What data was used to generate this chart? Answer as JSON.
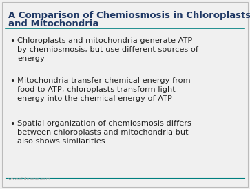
{
  "title_line1": "A Comparison of Chemiosmosis in Chloroplasts",
  "title_line2": "and Mitochondria",
  "title_color": "#1F3864",
  "title_fontsize": 9.5,
  "background_color": "#F0F0F0",
  "border_color": "#BBBBBB",
  "line_color": "#008080",
  "bullet_color": "#222222",
  "bullet_fontsize": 8.2,
  "bullets": [
    "Chloroplasts and mitochondria generate ATP\nby chemiosmosis, but use different sources of\nenergy",
    "Mitochondria transfer chemical energy from\nfood to ATP; chloroplasts transform light\nenergy into the chemical energy of ATP",
    "Spatial organization of chemiosmosis differs\nbetween chloroplasts and mitochondria but\nalso shows similarities"
  ],
  "watermark": "www.slidebase.com",
  "watermark_fontsize": 4.5,
  "watermark_color": "#AAAAAA"
}
